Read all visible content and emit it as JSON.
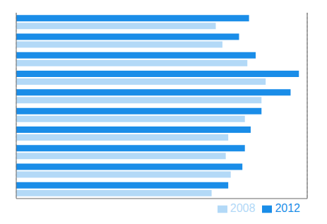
{
  "chart_data": {
    "type": "bar",
    "orientation": "horizontal",
    "categories": [
      null,
      null,
      null,
      null,
      null,
      null,
      null,
      null,
      null,
      null
    ],
    "series": [
      {
        "name": "2012",
        "color": "#1a8de8",
        "values": [
          28000,
          26800,
          28800,
          34000,
          33000,
          29500,
          28200,
          27500,
          27200,
          25500
        ]
      },
      {
        "name": "2008",
        "color": "#b3d9f7",
        "values": [
          24000,
          24800,
          27800,
          30000,
          29500,
          27500,
          25500,
          25200,
          25800,
          23500
        ]
      }
    ],
    "xlim": [
      0,
      35000
    ],
    "xticks": [
      10000,
      20000,
      30000
    ],
    "grid": true,
    "tick_labels": false,
    "legend": "lower right"
  }
}
